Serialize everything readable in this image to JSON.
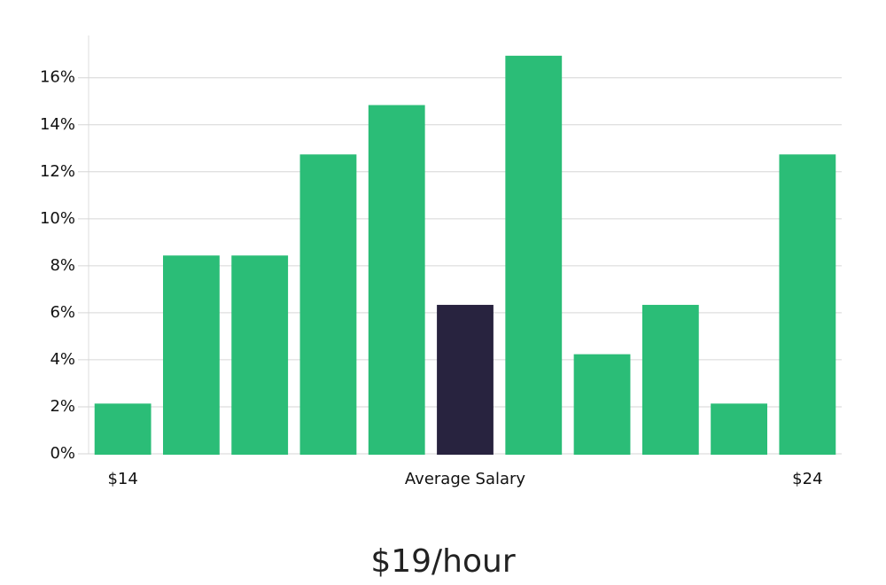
{
  "chart_data": {
    "type": "bar",
    "categories": [
      "$14",
      null,
      null,
      null,
      null,
      "Average Salary",
      null,
      null,
      null,
      null,
      "$24"
    ],
    "values": [
      2.1,
      8.4,
      8.4,
      12.7,
      14.8,
      6.3,
      16.9,
      4.2,
      6.3,
      2.1,
      12.7
    ],
    "colors": [
      "#2bbd77",
      "#2bbd77",
      "#2bbd77",
      "#2bbd77",
      "#2bbd77",
      "#28233f",
      "#2bbd77",
      "#2bbd77",
      "#2bbd77",
      "#2bbd77",
      "#2bbd77"
    ],
    "ylim": [
      0,
      17.8
    ],
    "yticks": [
      {
        "value": 0,
        "label": "0%"
      },
      {
        "value": 2,
        "label": "2%"
      },
      {
        "value": 4,
        "label": "4%"
      },
      {
        "value": 6,
        "label": "6%"
      },
      {
        "value": 8,
        "label": "8%"
      },
      {
        "value": 10,
        "label": "10%"
      },
      {
        "value": 12,
        "label": "12%"
      },
      {
        "value": 14,
        "label": "14%"
      },
      {
        "value": 16,
        "label": "16%"
      }
    ],
    "grid": true,
    "footer": "$19/hour"
  }
}
